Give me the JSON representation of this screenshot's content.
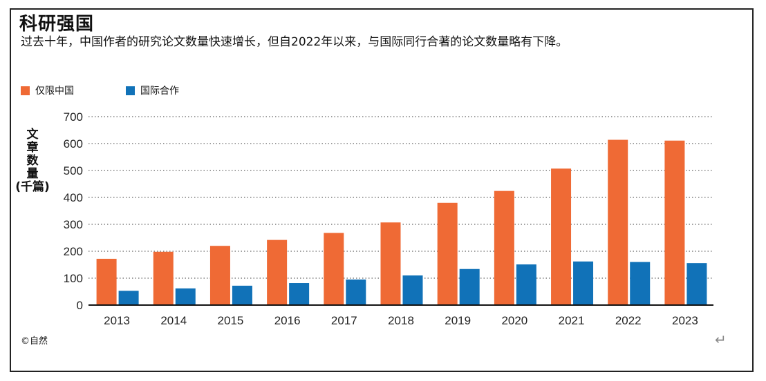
{
  "title": "科研强国",
  "subtitle": "过去十年，中国作者的研究论文数量快速增长，但自2022年以来，与国际同行合著的论文数量略有下降。",
  "source": "©自然",
  "return_symbol": "↵",
  "colors": {
    "china_only": "#ef6a35",
    "international": "#1172b8"
  },
  "chart_data": {
    "type": "bar",
    "title": "科研强国",
    "ylabel": "文章数量 (千篇)",
    "ylabel_lines": [
      "文",
      "章",
      "数",
      "量",
      "(千篇)"
    ],
    "xlabel": "",
    "categories": [
      "2013",
      "2014",
      "2015",
      "2016",
      "2017",
      "2018",
      "2019",
      "2020",
      "2021",
      "2022",
      "2023"
    ],
    "series": [
      {
        "name": "仅限中国",
        "color": "#ef6a35",
        "values": [
          172,
          198,
          220,
          242,
          268,
          307,
          380,
          424,
          507,
          614,
          611
        ]
      },
      {
        "name": "国际合作",
        "color": "#1172b8",
        "values": [
          53,
          62,
          72,
          82,
          95,
          110,
          134,
          151,
          162,
          160,
          156
        ]
      }
    ],
    "ylim": [
      0,
      700
    ],
    "yticks": [
      0,
      100,
      200,
      300,
      400,
      500,
      600,
      700
    ],
    "grid": true,
    "legend": "top-left"
  }
}
